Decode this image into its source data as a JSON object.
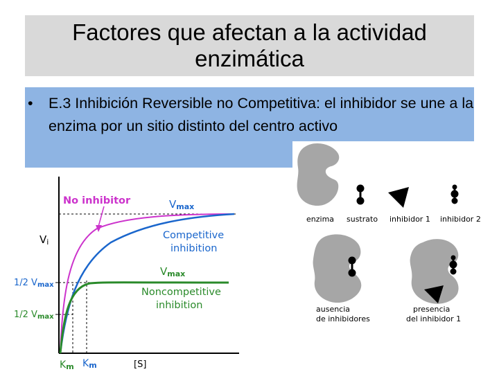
{
  "slide": {
    "title": "Factores que afectan a la actividad enzimática",
    "bullet_marker": "•",
    "bullet_text": "E.3 Inhibición Reversible  no Competitiva: el inhibidor se une a la enzima por un sitio distinto del centro activo"
  },
  "graph": {
    "label_no_inhibitor": "No inhibitor",
    "label_vmax_top": "V",
    "label_vmax_top_sub": "max",
    "label_vi": "V",
    "label_vi_sub": "i",
    "label_competitive_1": "Competitive",
    "label_competitive_2": "inhibition",
    "label_vmax_mid": "V",
    "label_vmax_mid_sub": "max",
    "label_noncompetitive_1": "Noncompetitive",
    "label_noncompetitive_2": "inhibition",
    "label_half_vmax_1": "1/2 V",
    "label_half_vmax_1_sub": "max",
    "label_half_vmax_2": "1/2 V",
    "label_half_vmax_2_sub": "max",
    "label_km_1": "K",
    "label_km_1_sub": "m",
    "label_km_2": "K",
    "label_km_2_sub": "m",
    "label_s": "[S]",
    "colors": {
      "no_inhibitor": "#cc33cc",
      "competitive": "#1a66cc",
      "noncompetitive": "#2a8a2a",
      "pink_label": "#cc33cc",
      "blue_label": "#1a66cc",
      "green_label": "#2a8a2a",
      "axis_label_blue": "#1a66cc"
    }
  },
  "scheme": {
    "label_enzima": "enzima",
    "label_sustrato": "sustrato",
    "label_inhibidor1": "inhibidor 1",
    "label_inhibidor2": "inhibidor 2",
    "label_ausencia_1": "ausencia",
    "label_ausencia_2": "de inhibidores",
    "label_presencia_1": "presencia",
    "label_presencia_2": "del inhibidor 1",
    "colors": {
      "enzyme": "#a6a6a6",
      "molecule": "#000000"
    }
  }
}
